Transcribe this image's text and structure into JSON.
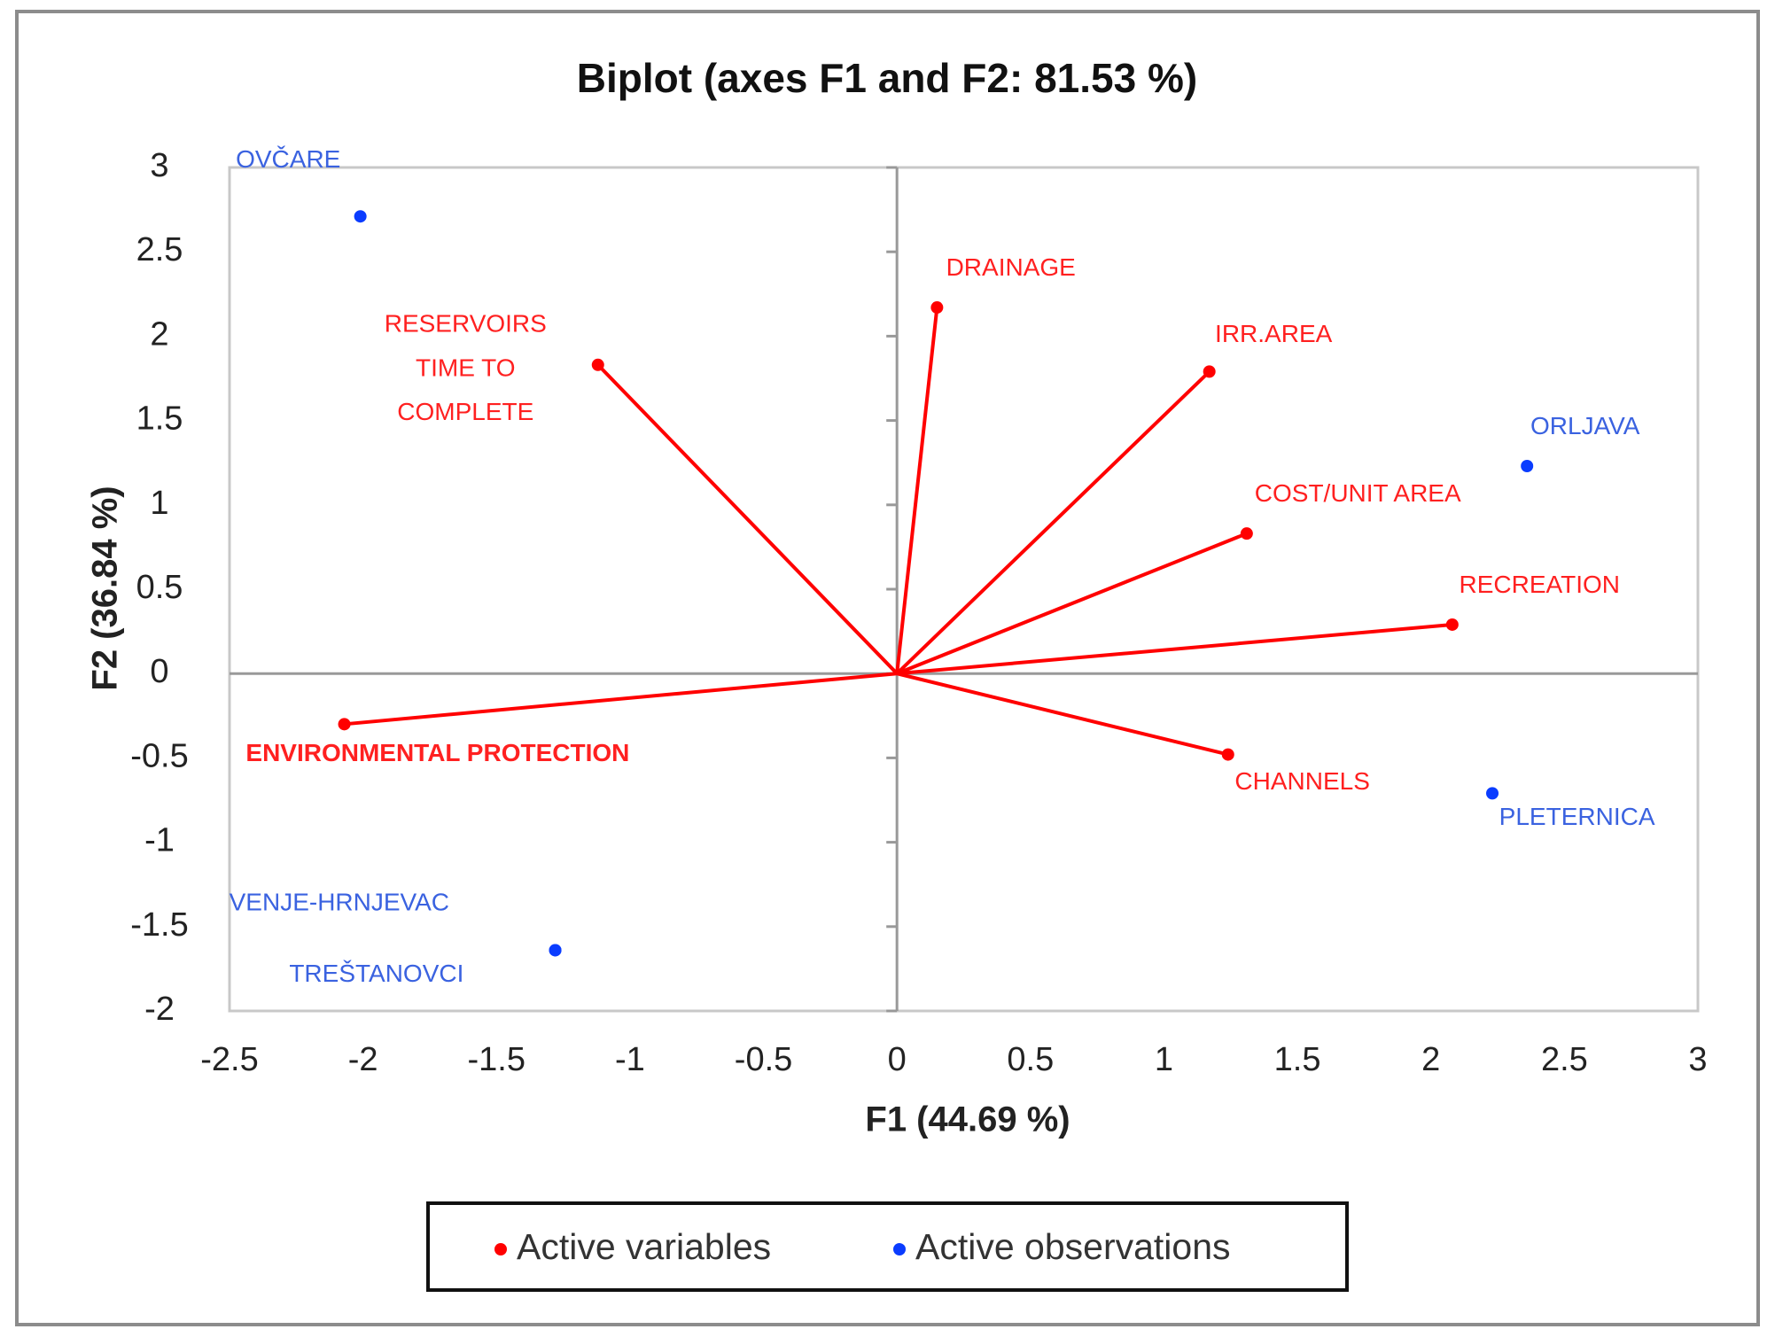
{
  "chart_data": {
    "type": "biplot",
    "title": "Biplot (axes F1 and F2: 81.53 %)",
    "x_label": "F1 (44.69 %)",
    "y_label": "F2 (36.84 %)",
    "xlim": [
      -2.5,
      3
    ],
    "ylim": [
      -2,
      3
    ],
    "xticks": [
      -2.5,
      -2,
      -1.5,
      -1,
      -0.5,
      0,
      0.5,
      1,
      1.5,
      2,
      2.5,
      3
    ],
    "yticks": [
      -2,
      -1.5,
      -1,
      -0.5,
      0,
      0.5,
      1,
      1.5,
      2,
      2.5,
      3
    ],
    "legend": "bottom",
    "series": [
      {
        "name": "Active variables",
        "color": "#ff0000",
        "vectors": true,
        "labels": [
          [
            "DRAINAGE"
          ],
          [
            "IRR.AREA"
          ],
          [
            "RESERVOIRS",
            "TIME TO",
            "COMPLETE"
          ],
          [
            "COST/UNIT AREA"
          ],
          [
            "RECREATION"
          ],
          [
            "CHANNELS"
          ],
          [
            "ENVIRONMENTAL PROTECTION"
          ]
        ],
        "x": [
          0.15,
          1.17,
          -1.12,
          1.31,
          2.08,
          1.24,
          -2.07
        ],
        "values": [
          2.17,
          1.79,
          1.83,
          0.83,
          0.29,
          -0.48,
          -0.3
        ]
      },
      {
        "name": "Active observations",
        "color": "#0a3cff",
        "vectors": false,
        "labels": [
          [
            "OVČARE"
          ],
          [
            "ORLJAVA"
          ],
          [
            "PLETERNICA"
          ],
          [
            "VENJE-HRNJEVAC"
          ],
          [
            "TREŠTANOVCI"
          ]
        ],
        "x": [
          -2.01,
          2.36,
          2.23,
          -1.28,
          -1.28
        ],
        "values": [
          2.71,
          1.23,
          -0.71,
          -1.64,
          -1.64
        ]
      }
    ]
  }
}
